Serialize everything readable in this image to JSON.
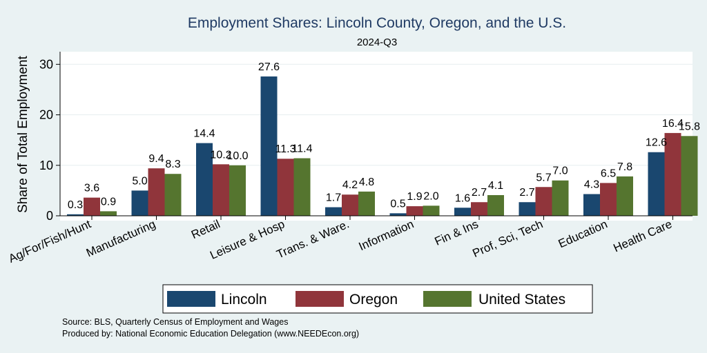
{
  "chart_data": {
    "type": "bar",
    "title": "Employment Shares: Lincoln County, Oregon, and the U.S.",
    "subtitle": "2024-Q3",
    "xlabel": "",
    "ylabel": "Share of Total Employment",
    "ylim": [
      0,
      32.5
    ],
    "yticks": [
      0,
      10,
      20,
      30
    ],
    "grid": true,
    "legend_position": "bottom",
    "categories": [
      "Ag/For/Fish/Hunt",
      "Manufacturing",
      "Retail",
      "Leisure & Hosp",
      "Trans. & Ware.",
      "Information",
      "Fin & Ins",
      "Prof, Sci, Tech",
      "Education",
      "Health Care"
    ],
    "series": [
      {
        "name": "Lincoln",
        "color": "#1a476f",
        "values": [
          0.3,
          5.0,
          14.4,
          27.6,
          1.7,
          0.5,
          1.6,
          2.7,
          4.3,
          12.6
        ]
      },
      {
        "name": "Oregon",
        "color": "#90353b",
        "values": [
          3.6,
          9.4,
          10.2,
          11.3,
          4.2,
          1.9,
          2.7,
          5.7,
          6.5,
          16.4
        ]
      },
      {
        "name": "United States",
        "color": "#55752f",
        "values": [
          0.9,
          8.3,
          10.0,
          11.4,
          4.8,
          2.0,
          4.1,
          7.0,
          7.8,
          15.8
        ]
      }
    ],
    "value_labels": [
      [
        "0.3",
        "5.0",
        "14.4",
        "27.6",
        "1.7",
        "0.5",
        "1.6",
        "2.7",
        "4.3",
        "12.6"
      ],
      [
        "3.6",
        "9.4",
        "10.2",
        "11.3",
        "4.2",
        "1.9",
        "2.7",
        "5.7",
        "6.5",
        "16.4"
      ],
      [
        "0.9",
        "8.3",
        "10.0",
        "11.4",
        "4.8",
        "2.0",
        "4.1",
        "7.0",
        "7.8",
        "15.8"
      ]
    ]
  },
  "notes": {
    "source": "Source: BLS, Quarterly Census of Employment and Wages",
    "produced_by": "Produced by: National Economic Education Delegation (www.NEEDEcon.org)"
  }
}
